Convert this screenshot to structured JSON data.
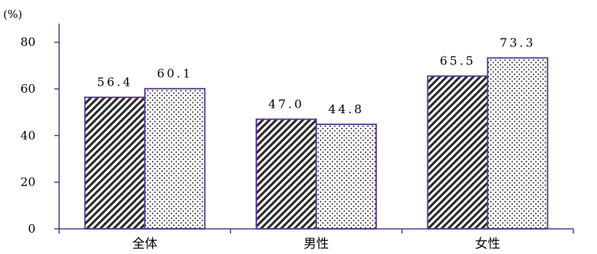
{
  "chart_data": {
    "type": "bar",
    "unit_label": "(%)",
    "categories": [
      "全体",
      "男性",
      "女性"
    ],
    "series": [
      {
        "values": [
          56.4,
          47.0,
          65.5
        ],
        "value_labels": [
          "56.4",
          "47.0",
          "65.5"
        ],
        "pattern": "diagonal-hatch"
      },
      {
        "values": [
          60.1,
          44.8,
          73.3
        ],
        "value_labels": [
          "60.1",
          "44.8",
          "73.3"
        ],
        "pattern": "dots"
      }
    ],
    "yticks": [
      "0",
      "20",
      "40",
      "60",
      "80"
    ],
    "ylim": [
      0,
      88
    ],
    "axis_color": "#5b3d8a",
    "bar_border_color": "#5b3d8a",
    "grid": false
  }
}
